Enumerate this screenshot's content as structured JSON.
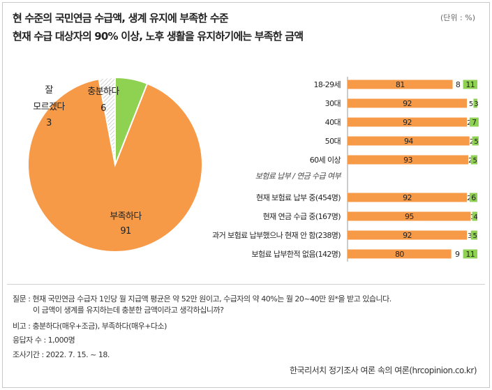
{
  "header": {
    "title_line1": "현 수준의 국민연금 수급액, 생계 유지에 부족한 수준",
    "title_line2": "현재 수급 대상자의 90% 이상, 노후 생활을 유지하기에는 부족한 금액",
    "unit": "(단위 : %)"
  },
  "chart_data": [
    {
      "type": "pie",
      "slices": [
        {
          "label": "부족하다",
          "value": 91,
          "color": "#f79a48"
        },
        {
          "label": "잘 모르겠다",
          "value": 3,
          "color": "#ffffff"
        },
        {
          "label": "충분하다",
          "value": 6,
          "color": "#8fd150"
        }
      ]
    },
    {
      "type": "bar",
      "stacked": true,
      "orientation": "horizontal",
      "series": [
        {
          "name": "부족하다",
          "color": "#f79a48"
        },
        {
          "name": "잘 모르겠다",
          "color": "#ffffff"
        },
        {
          "name": "충분하다",
          "color": "#8fd150"
        }
      ],
      "group_label": "보험료 납부 / 연금 수급 여부",
      "rows": [
        {
          "label": "18-29세",
          "values": [
            81,
            8,
            11
          ]
        },
        {
          "label": "30대",
          "values": [
            92,
            5,
            3
          ]
        },
        {
          "label": "40대",
          "values": [
            92,
            2,
            7
          ]
        },
        {
          "label": "50대",
          "values": [
            94,
            2,
            5
          ]
        },
        {
          "label": "60세 이상",
          "values": [
            93,
            2,
            5
          ]
        },
        {
          "label": "현재 보험료 납부 중(454명)",
          "values": [
            92,
            2,
            6
          ]
        },
        {
          "label": "현재 연금 수급 중(167명)",
          "values": [
            95,
            1,
            4
          ]
        },
        {
          "label": "과거 보험료 납부했으나 현재 안 함(238명)",
          "values": [
            92,
            3,
            5
          ]
        },
        {
          "label": "보험료 납부한적 없음(142명)",
          "values": [
            80,
            9,
            11
          ]
        }
      ]
    }
  ],
  "footer": {
    "question_1": "질문 : 현재 국민연금 수급자 1인당 월 지급액 평균은 약 52만 원이고, 수급자의 약 40%는 월 20~40만 원*을 받고 있습니다.",
    "question_2": "이 금액이 생계를 유지하는데 충분한 금액이라고 생각하십니까?",
    "note": "비고 :  충분하다(매우+조금), 부족하다(매우+다소)",
    "respondents": "응답자 수 : 1,000명",
    "period": "조사기간 : 2022. 7. 15. ~ 18.",
    "source": "한국리서치 정기조사 여론 속의 여론(hrcopinion.co.kr)"
  }
}
